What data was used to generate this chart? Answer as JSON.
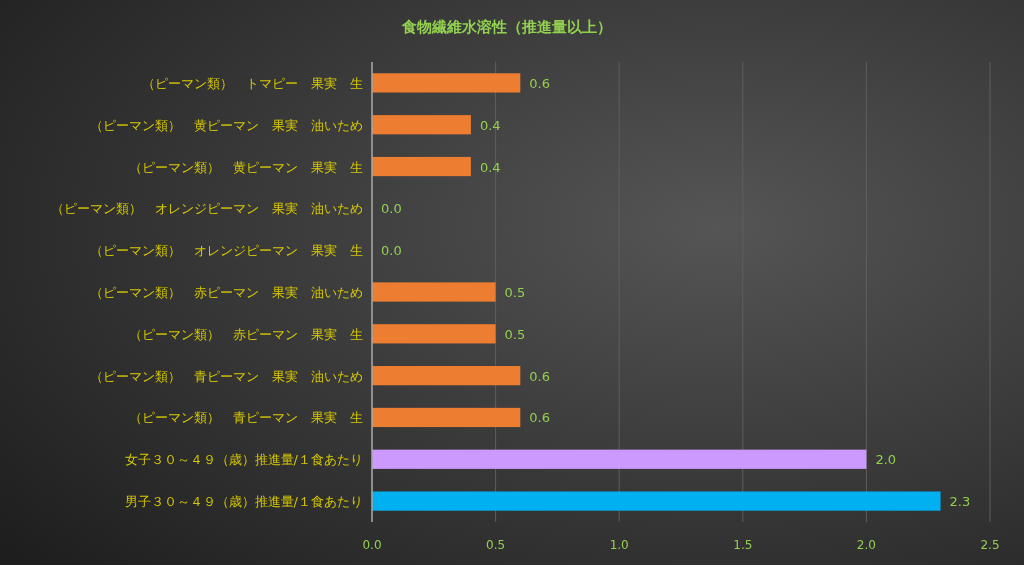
{
  "chart_data": {
    "type": "bar",
    "orientation": "horizontal",
    "title": "食物繊維水溶性（推進量以上）",
    "categories": [
      "（ピーマン類）　トマピー　果実　生",
      "（ピーマン類）　黄ピーマン　果実　油いため",
      "（ピーマン類）　黄ピーマン　果実　生",
      "（ピーマン類）　オレンジピーマン　果実　油いため",
      "（ピーマン類）　オレンジピーマン　果実　生",
      "（ピーマン類）　赤ピーマン　果実　油いため",
      "（ピーマン類）　赤ピーマン　果実　生",
      "（ピーマン類）　青ピーマン　果実　油いため",
      "（ピーマン類）　青ピーマン　果実　生",
      "女子３０～４９（歳）推進量/１食あたり",
      "男子３０～４９（歳）推進量/１食あたり"
    ],
    "values": [
      0.6,
      0.4,
      0.4,
      0.0,
      0.0,
      0.5,
      0.5,
      0.6,
      0.6,
      2.0,
      2.3
    ],
    "colors": [
      "#ed7d31",
      "#ed7d31",
      "#ed7d31",
      "#ed7d31",
      "#ed7d31",
      "#ed7d31",
      "#ed7d31",
      "#ed7d31",
      "#ed7d31",
      "#cc99ff",
      "#00b0f0"
    ],
    "xlim": [
      0,
      2.5
    ],
    "xticks": [
      {
        "value": 0,
        "label": "0.0"
      },
      {
        "value": 0.5,
        "label": "0.5"
      },
      {
        "value": 1,
        "label": "1.0"
      },
      {
        "value": 1.5,
        "label": "1.5"
      },
      {
        "value": 2,
        "label": "2.0"
      },
      {
        "value": 2.5,
        "label": "2.5"
      }
    ],
    "value_labels": [
      "0.6",
      "0.4",
      "0.4",
      "0.0",
      "0.0",
      "0.5",
      "0.5",
      "0.6",
      "0.6",
      "2.0",
      "2.3"
    ],
    "grid": "x"
  }
}
